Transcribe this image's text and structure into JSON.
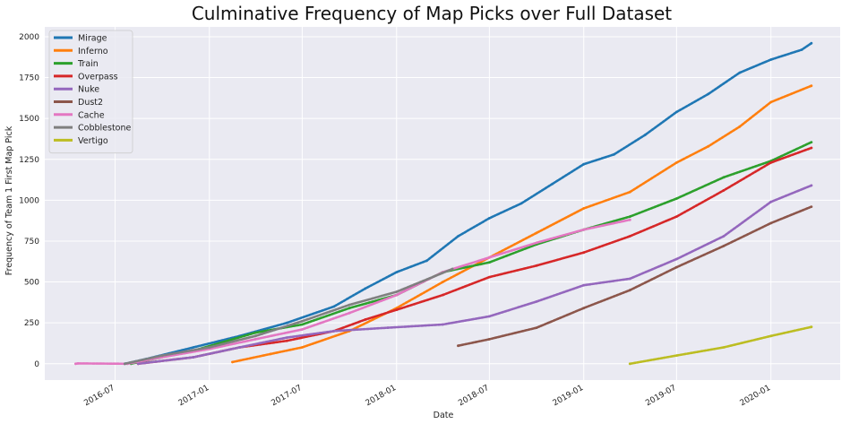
{
  "chart_data": {
    "type": "line",
    "title": "Culminative Frequency of Map Picks over Full Dataset",
    "xlabel": "Date",
    "ylabel": "Frequency of Team 1 First Map Pick",
    "x_ticks": [
      "2016-07",
      "2017-01",
      "2017-07",
      "2018-01",
      "2018-07",
      "2019-01",
      "2019-07",
      "2020-01"
    ],
    "y_ticks": [
      0,
      250,
      500,
      750,
      1000,
      1250,
      1500,
      1750,
      2000
    ],
    "xlim": [
      "2016-02-15",
      "2020-05-15"
    ],
    "ylim": [
      -100,
      2060
    ],
    "grid": true,
    "legend_position": "top-left",
    "series": [
      {
        "name": "Mirage",
        "color": "#1f77b4",
        "points": [
          [
            "2016-07-20",
            0
          ],
          [
            "2016-09-01",
            30
          ],
          [
            "2016-12-01",
            100
          ],
          [
            "2017-03-01",
            170
          ],
          [
            "2017-06-01",
            250
          ],
          [
            "2017-09-01",
            350
          ],
          [
            "2017-11-01",
            460
          ],
          [
            "2018-01-01",
            560
          ],
          [
            "2018-03-01",
            630
          ],
          [
            "2018-05-01",
            780
          ],
          [
            "2018-07-01",
            890
          ],
          [
            "2018-09-01",
            980
          ],
          [
            "2018-11-01",
            1100
          ],
          [
            "2019-01-01",
            1220
          ],
          [
            "2019-03-01",
            1280
          ],
          [
            "2019-05-01",
            1400
          ],
          [
            "2019-07-01",
            1540
          ],
          [
            "2019-09-01",
            1650
          ],
          [
            "2019-11-01",
            1780
          ],
          [
            "2020-01-01",
            1860
          ],
          [
            "2020-03-01",
            1920
          ],
          [
            "2020-03-20",
            1960
          ]
        ]
      },
      {
        "name": "Inferno",
        "color": "#ff7f0e",
        "points": [
          [
            "2017-02-15",
            10
          ],
          [
            "2017-05-01",
            60
          ],
          [
            "2017-07-01",
            100
          ],
          [
            "2017-10-01",
            200
          ],
          [
            "2018-01-01",
            340
          ],
          [
            "2018-04-01",
            500
          ],
          [
            "2018-07-01",
            650
          ],
          [
            "2018-10-01",
            800
          ],
          [
            "2019-01-01",
            950
          ],
          [
            "2019-04-01",
            1050
          ],
          [
            "2019-07-01",
            1230
          ],
          [
            "2019-09-01",
            1330
          ],
          [
            "2019-11-01",
            1450
          ],
          [
            "2020-01-01",
            1600
          ],
          [
            "2020-03-20",
            1700
          ]
        ]
      },
      {
        "name": "Train",
        "color": "#2ca02c",
        "points": [
          [
            "2016-08-01",
            0
          ],
          [
            "2016-12-01",
            80
          ],
          [
            "2017-04-01",
            190
          ],
          [
            "2017-07-01",
            240
          ],
          [
            "2017-10-01",
            340
          ],
          [
            "2018-01-01",
            420
          ],
          [
            "2018-04-01",
            560
          ],
          [
            "2018-07-01",
            620
          ],
          [
            "2018-10-01",
            730
          ],
          [
            "2019-01-01",
            820
          ],
          [
            "2019-04-01",
            900
          ],
          [
            "2019-07-01",
            1010
          ],
          [
            "2019-10-01",
            1140
          ],
          [
            "2020-01-01",
            1240
          ],
          [
            "2020-03-20",
            1355
          ]
        ]
      },
      {
        "name": "Overpass",
        "color": "#d62728",
        "points": [
          [
            "2016-08-15",
            0
          ],
          [
            "2016-12-01",
            40
          ],
          [
            "2017-03-01",
            100
          ],
          [
            "2017-06-01",
            140
          ],
          [
            "2017-09-01",
            200
          ],
          [
            "2017-11-01",
            270
          ],
          [
            "2018-01-01",
            330
          ],
          [
            "2018-04-01",
            420
          ],
          [
            "2018-07-01",
            530
          ],
          [
            "2018-10-01",
            600
          ],
          [
            "2019-01-01",
            680
          ],
          [
            "2019-04-01",
            780
          ],
          [
            "2019-07-01",
            900
          ],
          [
            "2019-10-01",
            1060
          ],
          [
            "2020-01-01",
            1230
          ],
          [
            "2020-03-20",
            1320
          ]
        ]
      },
      {
        "name": "Nuke",
        "color": "#9467bd",
        "points": [
          [
            "2016-08-15",
            0
          ],
          [
            "2016-12-01",
            40
          ],
          [
            "2017-03-01",
            100
          ],
          [
            "2017-06-01",
            160
          ],
          [
            "2017-09-01",
            200
          ],
          [
            "2017-12-15",
            220
          ],
          [
            "2018-04-01",
            240
          ],
          [
            "2018-07-01",
            290
          ],
          [
            "2018-10-01",
            380
          ],
          [
            "2019-01-01",
            480
          ],
          [
            "2019-04-01",
            520
          ],
          [
            "2019-07-01",
            640
          ],
          [
            "2019-10-01",
            780
          ],
          [
            "2020-01-01",
            990
          ],
          [
            "2020-03-20",
            1090
          ]
        ]
      },
      {
        "name": "Dust2",
        "color": "#8c564b",
        "points": [
          [
            "2018-05-01",
            110
          ],
          [
            "2018-07-01",
            150
          ],
          [
            "2018-10-01",
            220
          ],
          [
            "2019-01-01",
            340
          ],
          [
            "2019-04-01",
            450
          ],
          [
            "2019-07-01",
            590
          ],
          [
            "2019-10-01",
            720
          ],
          [
            "2020-01-01",
            860
          ],
          [
            "2020-03-20",
            960
          ]
        ]
      },
      {
        "name": "Cache",
        "color": "#e377c2",
        "points": [
          [
            "2016-04-15",
            0
          ],
          [
            "2016-04-20",
            2
          ],
          [
            "2016-07-25",
            0
          ],
          [
            "2016-10-01",
            40
          ],
          [
            "2017-01-01",
            90
          ],
          [
            "2017-04-01",
            150
          ],
          [
            "2017-07-01",
            210
          ],
          [
            "2017-10-01",
            310
          ],
          [
            "2018-01-01",
            420
          ],
          [
            "2018-04-01",
            560
          ],
          [
            "2018-07-01",
            650
          ],
          [
            "2018-10-01",
            740
          ],
          [
            "2019-01-01",
            820
          ],
          [
            "2019-04-01",
            880
          ]
        ]
      },
      {
        "name": "Cobblestone",
        "color": "#7f7f7f",
        "points": [
          [
            "2016-07-20",
            0
          ],
          [
            "2016-10-01",
            50
          ],
          [
            "2017-01-01",
            100
          ],
          [
            "2017-04-01",
            170
          ],
          [
            "2017-07-01",
            260
          ],
          [
            "2017-10-01",
            360
          ],
          [
            "2018-01-01",
            440
          ],
          [
            "2018-04-20",
            580
          ]
        ]
      },
      {
        "name": "Vertigo",
        "color": "#bcbd22",
        "points": [
          [
            "2019-04-01",
            0
          ],
          [
            "2019-07-01",
            50
          ],
          [
            "2019-10-01",
            100
          ],
          [
            "2020-01-01",
            170
          ],
          [
            "2020-03-20",
            225
          ]
        ]
      }
    ]
  }
}
